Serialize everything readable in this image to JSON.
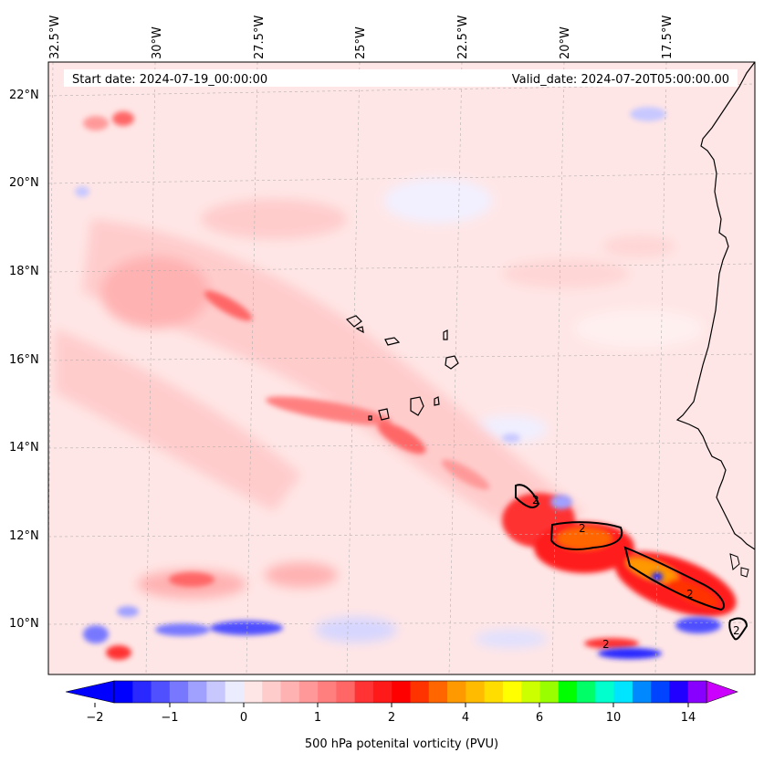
{
  "header": {
    "start_date": "Start date: 2024-07-19_00:00:00",
    "valid_date": "Valid_date: 2024-07-20T05:00:00.00"
  },
  "lon_labels": [
    "32.5°W",
    "30°W",
    "27.5°W",
    "25°W",
    "22.5°W",
    "20°W",
    "17.5°W"
  ],
  "lat_labels": [
    "22°N",
    "20°N",
    "18°N",
    "16°N",
    "14°N",
    "12°N",
    "10°N"
  ],
  "contour_labels": [
    "2",
    "2",
    "2",
    "2",
    "2"
  ],
  "colorbar": {
    "title": "500 hPa potenital vorticity (PVU)",
    "ticks": [
      "−2",
      "−1",
      "0",
      "1",
      "2",
      "4",
      "6",
      "10",
      "14"
    ],
    "colors": [
      "#0000ff",
      "#2828ff",
      "#5050ff",
      "#7878ff",
      "#a0a0ff",
      "#c8c8ff",
      "#ececff",
      "#ffe6e6",
      "#ffcccc",
      "#ffb2b2",
      "#ff9999",
      "#ff7f7f",
      "#ff6666",
      "#ff3333",
      "#ff1a1a",
      "#ff0000",
      "#ff3300",
      "#ff6600",
      "#ff9900",
      "#ffbb00",
      "#ffdd00",
      "#ffff00",
      "#ccff00",
      "#99ff00",
      "#00ff00",
      "#00ff66",
      "#00ffcc",
      "#00e5ff",
      "#0088ff",
      "#0044ff",
      "#2200ff",
      "#8800ff"
    ],
    "extend_low": "#0000ff",
    "extend_high": "#cc00ff"
  }
}
